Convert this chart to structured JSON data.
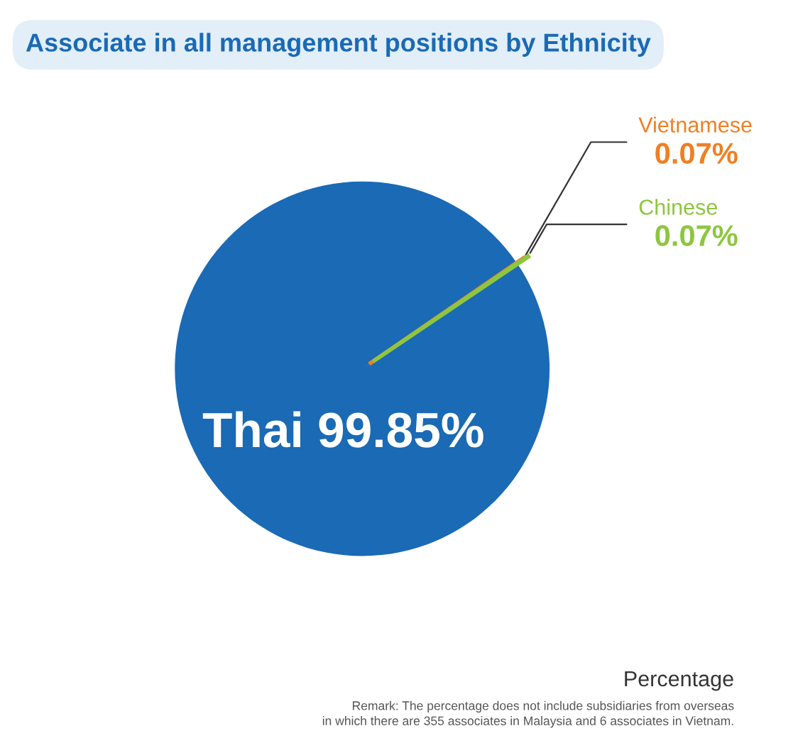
{
  "chart_data": {
    "type": "pie",
    "title": "Associate in all management positions by Ethnicity",
    "categories": [
      "Thai",
      "Vietnamese",
      "Chinese"
    ],
    "values": [
      99.85,
      0.07,
      0.07
    ],
    "colors": [
      "#1a6ab5",
      "#f07f23",
      "#8dc63f"
    ],
    "value_labels": [
      "99.85%",
      "0.07%",
      "0.07%"
    ],
    "legend": false,
    "annotations": [
      "Percentage",
      "Remark: The percentage does not include subsidiaries from overseas\nin which there are 355 associates in Malaysia and 6 associates in Vietnam."
    ]
  }
}
